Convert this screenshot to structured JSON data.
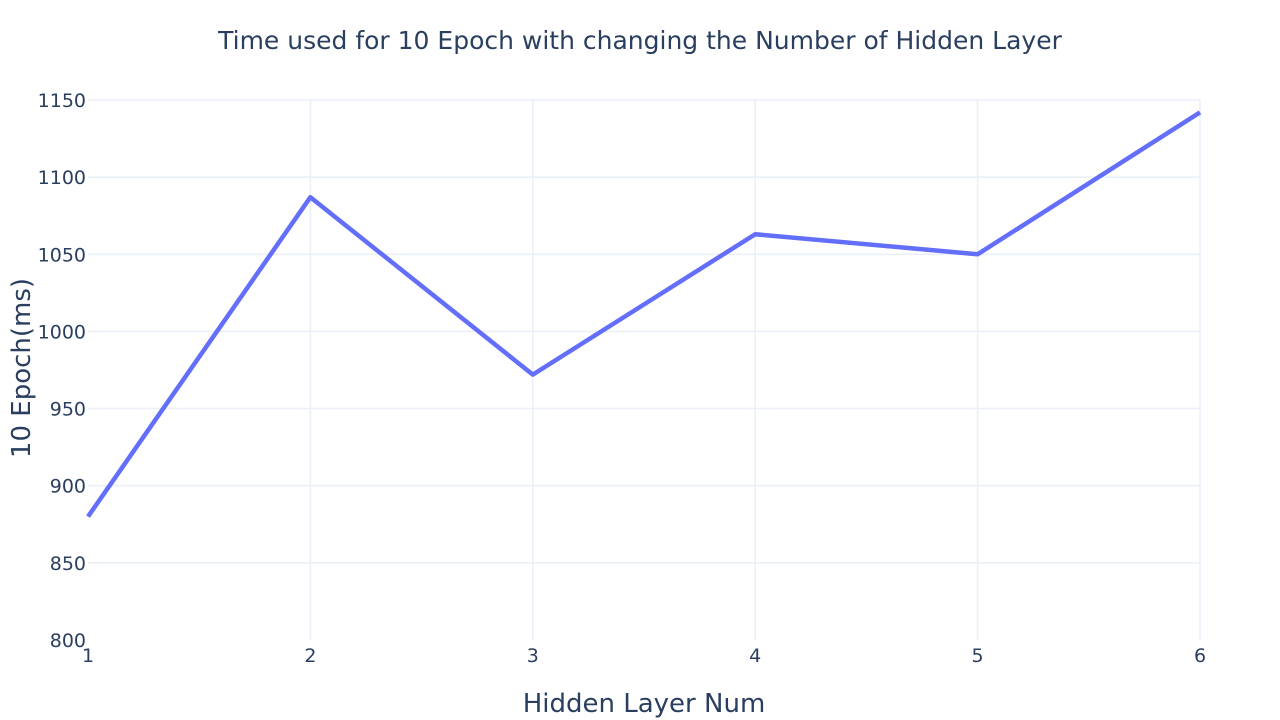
{
  "chart_data": {
    "type": "line",
    "title": "Time used for 10 Epoch with changing the Number of Hidden Layer",
    "xlabel": "Hidden Layer Num",
    "ylabel": "10 Epoch(ms)",
    "x": [
      1,
      2,
      3,
      4,
      5,
      6
    ],
    "series": [
      {
        "values": [
          880,
          1087,
          972,
          1063,
          1050,
          1142
        ]
      }
    ],
    "xlim": [
      1,
      6
    ],
    "ylim": [
      800,
      1150
    ],
    "xticks": [
      1,
      2,
      3,
      4,
      5,
      6
    ],
    "yticks": [
      800,
      850,
      900,
      950,
      1000,
      1050,
      1100,
      1150
    ],
    "grid": true,
    "legend": "none",
    "colors": {
      "line": "#636efa",
      "grid": "#ebf0f8",
      "text": "#2a3f5f",
      "background": "#ffffff"
    }
  }
}
